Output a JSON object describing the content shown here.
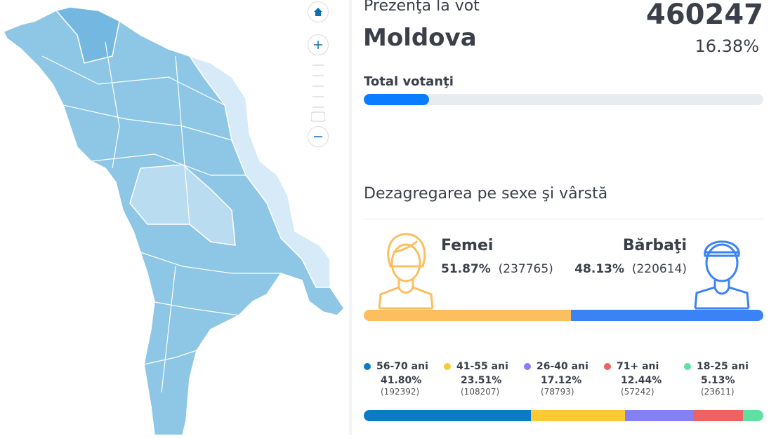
{
  "header": {
    "subtitle": "Prezenţa la vot",
    "region": "Moldova",
    "total": 460247,
    "percent": {
      "value": 16.38,
      "label": "16.38%"
    },
    "bar_label": "Total votanţi",
    "bar_color": "#0a7cff"
  },
  "gender": {
    "title": "Dezagregarea pe sexe şi vârstă",
    "groups": [
      {
        "name": "Femei",
        "percent": {
          "value": 51.87,
          "label": "51.87%"
        },
        "count": "(237765)",
        "color": "#fbbf5f"
      },
      {
        "name": "Bărbaţi",
        "percent": {
          "value": 48.13,
          "label": "48.13%"
        },
        "count": "(220614)",
        "color": "#3b82f6"
      }
    ]
  },
  "age": {
    "groups": [
      {
        "name": "56-70 ani",
        "percent": {
          "value": 41.8,
          "label": "41.80%"
        },
        "count": "(192392)",
        "color": "#0b7cc3"
      },
      {
        "name": "41-55 ani",
        "percent": {
          "value": 23.51,
          "label": "23.51%"
        },
        "count": "(108207)",
        "color": "#fdca35"
      },
      {
        "name": "26-40 ani",
        "percent": {
          "value": 17.12,
          "label": "17.12%"
        },
        "count": "(78793)",
        "color": "#8480f5"
      },
      {
        "name": "71+ ani",
        "percent": {
          "value": 12.44,
          "label": "12.44%"
        },
        "count": "(57242)",
        "color": "#f06262"
      },
      {
        "name": "18-25 ani",
        "percent": {
          "value": 5.13,
          "label": "5.13%"
        },
        "count": "(23611)",
        "color": "#5de0a0"
      }
    ]
  }
}
